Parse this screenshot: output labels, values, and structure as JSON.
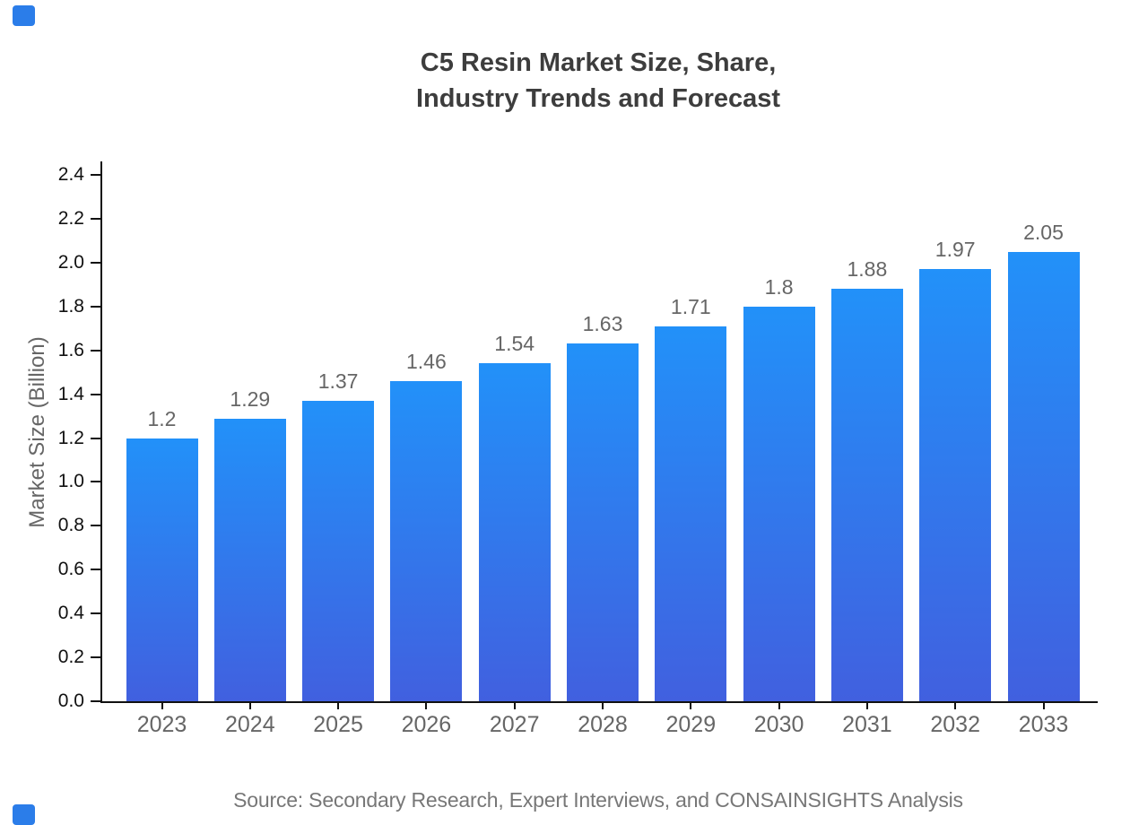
{
  "title": {
    "line1": "C5 Resin Market Size, Share,",
    "line2": "Industry Trends and Forecast"
  },
  "source": "Source: Secondary Research, Expert Interviews, and CONSAINSIGHTS Analysis",
  "chart_data": {
    "type": "bar",
    "title": "C5 Resin Market Size, Share, Industry Trends and Forecast",
    "categories": [
      "2023",
      "2024",
      "2025",
      "2026",
      "2027",
      "2028",
      "2029",
      "2030",
      "2031",
      "2032",
      "2033"
    ],
    "values": [
      1.2,
      1.29,
      1.37,
      1.46,
      1.54,
      1.63,
      1.71,
      1.8,
      1.88,
      1.97,
      2.05
    ],
    "value_labels": [
      "1.2",
      "1.29",
      "1.37",
      "1.46",
      "1.54",
      "1.63",
      "1.71",
      "1.8",
      "1.88",
      "1.97",
      "2.05"
    ],
    "xlabel": "",
    "ylabel": "Market Size (Billion)",
    "ylim": [
      0,
      2.4
    ],
    "ytick_labels": [
      "0.0",
      "0.2",
      "0.4",
      "0.6",
      "0.8",
      "1.0",
      "1.2",
      "1.4",
      "1.6",
      "1.8",
      "2.0",
      "2.2",
      "2.4"
    ],
    "grid": false,
    "legend": false
  },
  "colors": {
    "bar_gradient_top": "#2291F9",
    "bar_gradient_bottom": "#4160DF",
    "axis_line": "#111111",
    "y_tick_label": "#111111",
    "x_tick_label": "#666666",
    "value_label": "#666666",
    "title_text": "#3d3d3d",
    "source_text": "#777777",
    "brand_mark": "#2b7de9"
  }
}
